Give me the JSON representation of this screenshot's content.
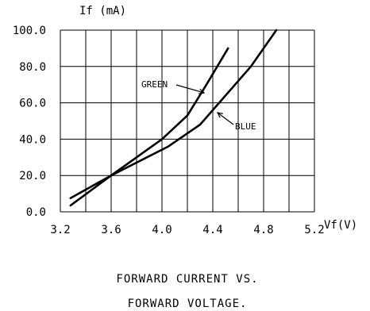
{
  "chart_data": {
    "type": "line",
    "title_lines": [
      "FORWARD CURRENT VS.",
      "FORWARD VOLTAGE."
    ],
    "xlabel": "Vf(V)",
    "ylabel": "If (mA)",
    "xlim": [
      3.2,
      5.2
    ],
    "ylim": [
      0,
      100
    ],
    "x_ticks": [
      "3.2",
      "3.6",
      "4.0",
      "4.4",
      "4.8",
      "5.2"
    ],
    "y_ticks": [
      "0.0",
      "20.0",
      "40.0",
      "60.0",
      "80.0",
      "100.0"
    ],
    "grid": true,
    "series": [
      {
        "name": "GREEN",
        "x": [
          3.28,
          3.6,
          3.8,
          4.0,
          4.2,
          4.35,
          4.52
        ],
        "y": [
          3.5,
          20,
          30,
          40,
          53,
          70,
          90
        ]
      },
      {
        "name": "BLUE",
        "x": [
          3.28,
          3.6,
          4.05,
          4.3,
          4.45,
          4.7,
          4.9
        ],
        "y": [
          7.5,
          20,
          36,
          48,
          60,
          80,
          100
        ]
      }
    ]
  }
}
